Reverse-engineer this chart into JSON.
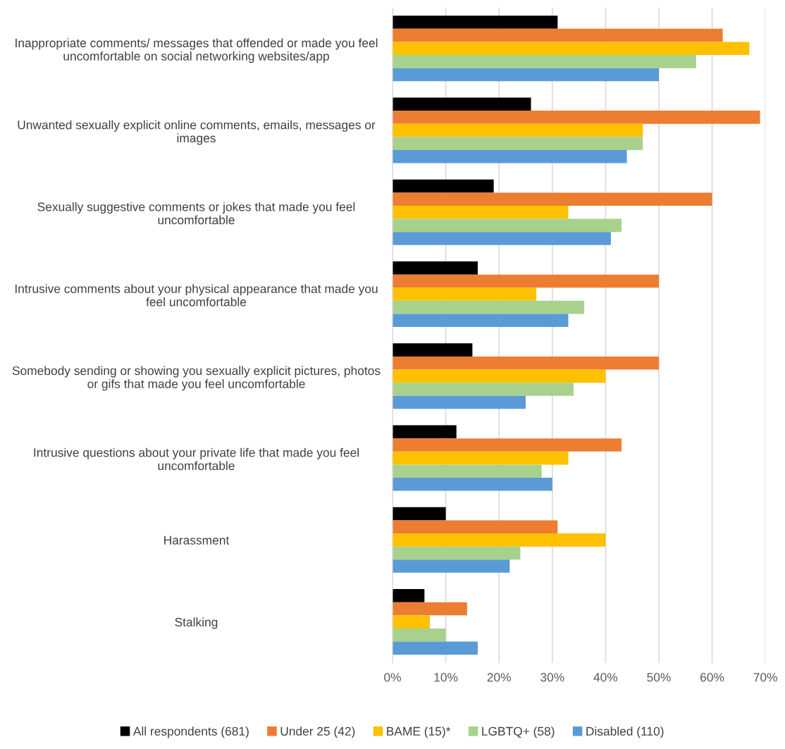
{
  "chart_data": {
    "type": "bar",
    "orientation": "horizontal",
    "categories": [
      "Inappropriate comments/ messages that offended or made you feel uncomfortable on social networking websites/app",
      "Unwanted sexually explicit online comments, emails, messages or images",
      "Sexually suggestive comments or jokes that made you feel uncomfortable",
      "Intrusive comments about your physical appearance that made you feel uncomfortable",
      "Somebody sending or showing you sexually explicit pictures, photos or gifs that made you feel uncomfortable",
      "Intrusive questions about your private life that made you feel uncomfortable",
      "Harassment",
      "Stalking"
    ],
    "series": [
      {
        "name": "All respondents (681)",
        "color": "#000000",
        "values": [
          31,
          26,
          19,
          16,
          15,
          12,
          10,
          6
        ]
      },
      {
        "name": "Under 25 (42)",
        "color": "#ed7d31",
        "values": [
          62,
          69,
          60,
          50,
          50,
          43,
          31,
          14
        ]
      },
      {
        "name": "BAME (15)*",
        "color": "#ffc000",
        "values": [
          67,
          47,
          33,
          27,
          40,
          33,
          40,
          7
        ]
      },
      {
        "name": "LGBTQ+ (58)",
        "color": "#a9d18e",
        "values": [
          57,
          47,
          43,
          36,
          34,
          28,
          24,
          10
        ]
      },
      {
        "name": "Disabled (110)",
        "color": "#5b9bd5",
        "values": [
          50,
          44,
          41,
          33,
          25,
          30,
          22,
          16
        ]
      }
    ],
    "xlim": [
      0,
      70
    ],
    "xticks": [
      {
        "value": 0,
        "label": "0%"
      },
      {
        "value": 10,
        "label": "10%"
      },
      {
        "value": 20,
        "label": "20%"
      },
      {
        "value": 30,
        "label": "30%"
      },
      {
        "value": 40,
        "label": "40%"
      },
      {
        "value": 50,
        "label": "50%"
      },
      {
        "value": 60,
        "label": "60%"
      },
      {
        "value": 70,
        "label": "70%"
      }
    ],
    "grid": "x",
    "legend": "bottom"
  }
}
